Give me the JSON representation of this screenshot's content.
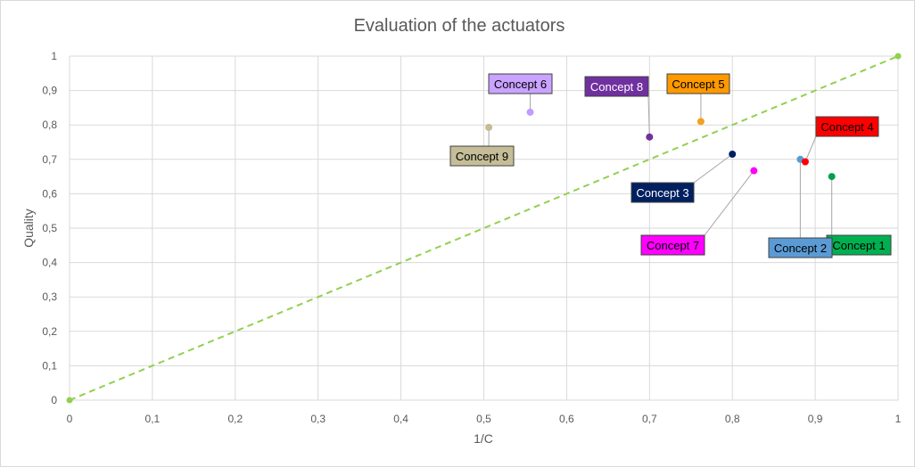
{
  "chart_data": {
    "type": "scatter",
    "title": "Evaluation of the actuators",
    "xlabel": "1/C",
    "ylabel": "Quality",
    "xlim": [
      0,
      1
    ],
    "ylim": [
      0,
      1
    ],
    "x_ticks": [
      "0",
      "0,1",
      "0,2",
      "0,3",
      "0,4",
      "0,5",
      "0,6",
      "0,7",
      "0,8",
      "0,9",
      "1"
    ],
    "y_ticks": [
      "0",
      "0,1",
      "0,2",
      "0,3",
      "0,4",
      "0,5",
      "0,6",
      "0,7",
      "0,8",
      "0,9",
      "1"
    ],
    "grid": true,
    "legend": "none",
    "reference_line": {
      "points": [
        [
          0,
          0
        ],
        [
          1,
          1
        ]
      ],
      "style": "dashed",
      "color": "#92d050"
    },
    "points": [
      {
        "label": "Concept 1",
        "x": 0.92,
        "y": 0.65,
        "color": "#00a050",
        "label_bg": "#00b050",
        "label_color": "#000000"
      },
      {
        "label": "Concept 2",
        "x": 0.882,
        "y": 0.7,
        "color": "#5b9bd5",
        "label_bg": "#5b9bd5",
        "label_color": "#000000"
      },
      {
        "label": "Concept 3",
        "x": 0.8,
        "y": 0.715,
        "color": "#002060",
        "label_bg": "#002060",
        "label_color": "#ffffff"
      },
      {
        "label": "Concept 4",
        "x": 0.888,
        "y": 0.693,
        "color": "#ff0000",
        "label_bg": "#ff0000",
        "label_color": "#000000"
      },
      {
        "label": "Concept 5",
        "x": 0.762,
        "y": 0.81,
        "color": "#f4a020",
        "label_bg": "#ff9900",
        "label_color": "#000000"
      },
      {
        "label": "Concept 6",
        "x": 0.556,
        "y": 0.837,
        "color": "#c39bff",
        "label_bg": "#c9a3ff",
        "label_color": "#000000"
      },
      {
        "label": "Concept 7",
        "x": 0.826,
        "y": 0.667,
        "color": "#ff00ff",
        "label_bg": "#ff00ff",
        "label_color": "#000000"
      },
      {
        "label": "Concept 8",
        "x": 0.7,
        "y": 0.765,
        "color": "#7030a0",
        "label_bg": "#7030a0",
        "label_color": "#ffffff"
      },
      {
        "label": "Concept 9",
        "x": 0.506,
        "y": 0.793,
        "color": "#c4bc96",
        "label_bg": "#c4bd97",
        "label_color": "#000000"
      }
    ]
  }
}
